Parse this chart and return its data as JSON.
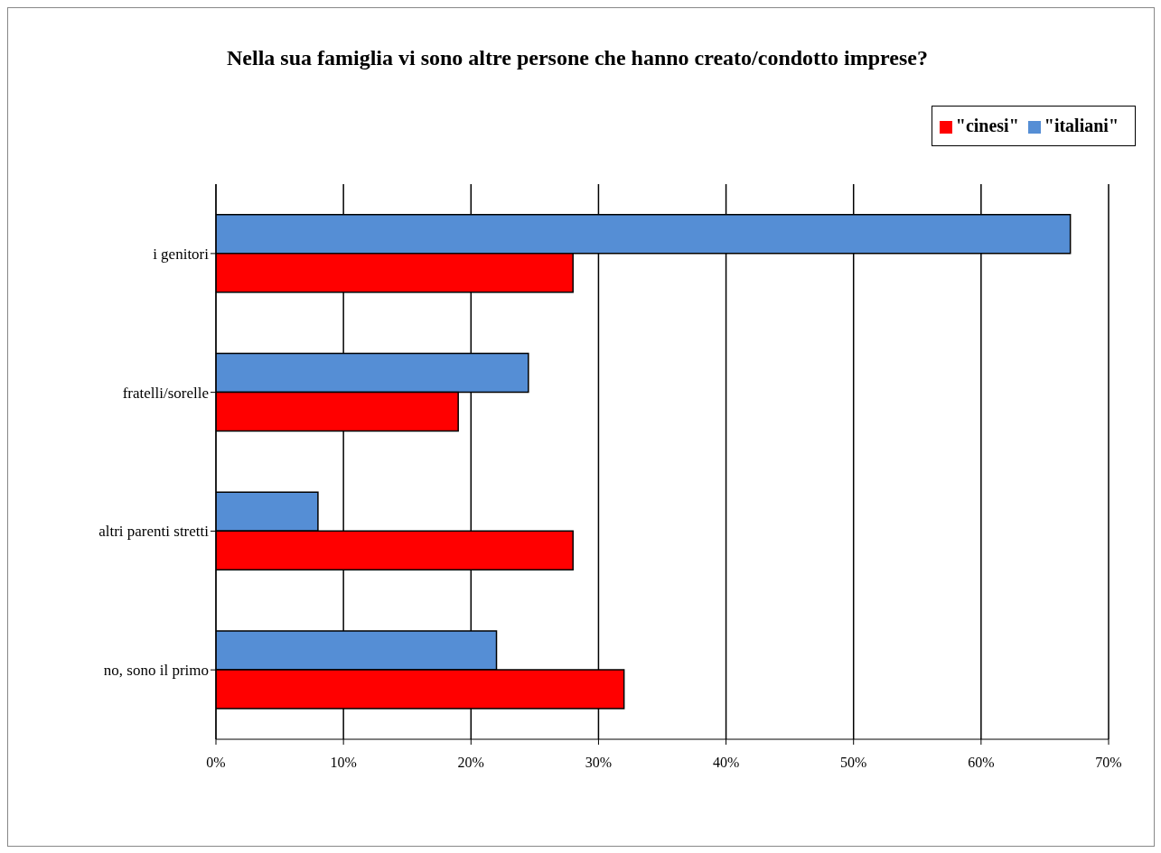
{
  "chart_data": {
    "type": "bar",
    "orientation": "horizontal",
    "title": "Nella sua famiglia vi sono altre persone che hanno creato/condotto imprese?",
    "categories": [
      "i genitori",
      "fratelli/sorelle",
      "altri parenti stretti",
      "no, sono il primo"
    ],
    "series": [
      {
        "name": "\"italiani\"",
        "color": "#558ed5",
        "values": [
          67,
          24.5,
          8,
          22
        ]
      },
      {
        "name": "\"cinesi\"",
        "color": "#ff0000",
        "values": [
          28,
          19,
          28,
          32
        ]
      }
    ],
    "xlim": [
      0,
      70
    ],
    "xticks": [
      {
        "value": 0,
        "label": "0%"
      },
      {
        "value": 10,
        "label": "10%"
      },
      {
        "value": 20,
        "label": "20%"
      },
      {
        "value": 30,
        "label": "30%"
      },
      {
        "value": 40,
        "label": "40%"
      },
      {
        "value": 50,
        "label": "50%"
      },
      {
        "value": 60,
        "label": "60%"
      },
      {
        "value": 70,
        "label": "70%"
      }
    ],
    "grid": "x",
    "legend": "top right"
  }
}
